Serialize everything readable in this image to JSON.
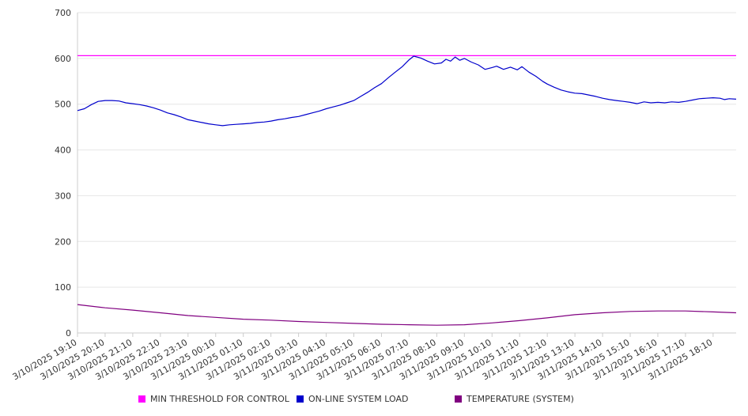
{
  "colors": {
    "threshold": "#ff00ff",
    "load": "#0000cc",
    "temperature": "#800080",
    "grid": "#e6e6e6",
    "axis": "#cccccc",
    "text": "#333333"
  },
  "legend": {
    "threshold_label": "MIN THRESHOLD FOR CONTROL",
    "load_label": "ON-LINE SYSTEM LOAD",
    "temperature_label": "TEMPERATURE (SYSTEM)"
  },
  "chart_data": {
    "type": "line",
    "title": "",
    "xlabel": "",
    "ylabel": "",
    "ylim": [
      0,
      700
    ],
    "yticks": [
      0,
      100,
      200,
      300,
      400,
      500,
      600,
      700
    ],
    "grid": true,
    "legend_position": "bottom",
    "x_ticks": [
      "3/10/2025 19:10",
      "3/10/2025 20:10",
      "3/10/2025 21:10",
      "3/10/2025 22:10",
      "3/10/2025 23:10",
      "3/11/2025 00:10",
      "3/11/2025 01:10",
      "3/11/2025 02:10",
      "3/11/2025 03:10",
      "3/11/2025 04:10",
      "3/11/2025 05:10",
      "3/11/2025 06:10",
      "3/11/2025 07:10",
      "3/11/2025 08:10",
      "3/11/2025 09:10",
      "3/11/2025 10:10",
      "3/11/2025 11:10",
      "3/11/2025 12:10",
      "3/11/2025 13:10",
      "3/11/2025 14:10",
      "3/11/2025 15:10",
      "3/11/2025 16:10",
      "3/11/2025 17:10",
      "3/11/2025 18:10"
    ],
    "x_end": "3/11/2025 19:00",
    "series": [
      {
        "name": "MIN THRESHOLD FOR CONTROL",
        "color": "#ff00ff",
        "points": [
          [
            "3/10/2025 19:10",
            606
          ],
          [
            "3/11/2025 19:00",
            606
          ]
        ]
      },
      {
        "name": "ON-LINE SYSTEM LOAD",
        "color": "#0000cc",
        "points": [
          [
            "3/10/2025 19:10",
            486
          ],
          [
            "3/10/2025 19:25",
            490
          ],
          [
            "3/10/2025 19:40",
            499
          ],
          [
            "3/10/2025 19:55",
            506
          ],
          [
            "3/10/2025 20:10",
            508
          ],
          [
            "3/10/2025 20:25",
            508
          ],
          [
            "3/10/2025 20:40",
            507
          ],
          [
            "3/10/2025 20:55",
            503
          ],
          [
            "3/10/2025 21:10",
            501
          ],
          [
            "3/10/2025 21:25",
            499
          ],
          [
            "3/10/2025 21:40",
            496
          ],
          [
            "3/10/2025 21:55",
            492
          ],
          [
            "3/10/2025 22:10",
            487
          ],
          [
            "3/10/2025 22:25",
            481
          ],
          [
            "3/10/2025 22:40",
            477
          ],
          [
            "3/10/2025 22:55",
            472
          ],
          [
            "3/10/2025 23:10",
            466
          ],
          [
            "3/10/2025 23:25",
            463
          ],
          [
            "3/10/2025 23:40",
            460
          ],
          [
            "3/10/2025 23:55",
            457
          ],
          [
            "3/11/2025 00:10",
            455
          ],
          [
            "3/11/2025 00:25",
            453
          ],
          [
            "3/11/2025 00:40",
            455
          ],
          [
            "3/11/2025 00:55",
            456
          ],
          [
            "3/11/2025 01:10",
            457
          ],
          [
            "3/11/2025 01:25",
            458
          ],
          [
            "3/11/2025 01:40",
            460
          ],
          [
            "3/11/2025 01:55",
            461
          ],
          [
            "3/11/2025 02:10",
            463
          ],
          [
            "3/11/2025 02:25",
            466
          ],
          [
            "3/11/2025 02:40",
            468
          ],
          [
            "3/11/2025 02:55",
            471
          ],
          [
            "3/11/2025 03:10",
            473
          ],
          [
            "3/11/2025 03:25",
            477
          ],
          [
            "3/11/2025 03:40",
            481
          ],
          [
            "3/11/2025 03:55",
            485
          ],
          [
            "3/11/2025 04:10",
            490
          ],
          [
            "3/11/2025 04:25",
            494
          ],
          [
            "3/11/2025 04:40",
            498
          ],
          [
            "3/11/2025 04:55",
            503
          ],
          [
            "3/11/2025 05:10",
            508
          ],
          [
            "3/11/2025 05:25",
            517
          ],
          [
            "3/11/2025 05:40",
            526
          ],
          [
            "3/11/2025 05:55",
            536
          ],
          [
            "3/11/2025 06:10",
            545
          ],
          [
            "3/11/2025 06:25",
            558
          ],
          [
            "3/11/2025 06:40",
            570
          ],
          [
            "3/11/2025 06:55",
            582
          ],
          [
            "3/11/2025 07:10",
            597
          ],
          [
            "3/11/2025 07:20",
            605
          ],
          [
            "3/11/2025 07:35",
            601
          ],
          [
            "3/11/2025 07:50",
            594
          ],
          [
            "3/11/2025 08:05",
            588
          ],
          [
            "3/11/2025 08:20",
            590
          ],
          [
            "3/11/2025 08:30",
            598
          ],
          [
            "3/11/2025 08:40",
            594
          ],
          [
            "3/11/2025 08:50",
            603
          ],
          [
            "3/11/2025 09:00",
            596
          ],
          [
            "3/11/2025 09:10",
            600
          ],
          [
            "3/11/2025 09:25",
            592
          ],
          [
            "3/11/2025 09:40",
            586
          ],
          [
            "3/11/2025 09:55",
            576
          ],
          [
            "3/11/2025 10:10",
            580
          ],
          [
            "3/11/2025 10:20",
            583
          ],
          [
            "3/11/2025 10:35",
            576
          ],
          [
            "3/11/2025 10:50",
            581
          ],
          [
            "3/11/2025 11:05",
            575
          ],
          [
            "3/11/2025 11:15",
            582
          ],
          [
            "3/11/2025 11:30",
            570
          ],
          [
            "3/11/2025 11:45",
            561
          ],
          [
            "3/11/2025 12:00",
            550
          ],
          [
            "3/11/2025 12:10",
            544
          ],
          [
            "3/11/2025 12:25",
            537
          ],
          [
            "3/11/2025 12:40",
            531
          ],
          [
            "3/11/2025 12:55",
            527
          ],
          [
            "3/11/2025 13:10",
            524
          ],
          [
            "3/11/2025 13:25",
            523
          ],
          [
            "3/11/2025 13:40",
            520
          ],
          [
            "3/11/2025 13:55",
            517
          ],
          [
            "3/11/2025 14:10",
            513
          ],
          [
            "3/11/2025 14:25",
            510
          ],
          [
            "3/11/2025 14:40",
            508
          ],
          [
            "3/11/2025 14:55",
            506
          ],
          [
            "3/11/2025 15:10",
            504
          ],
          [
            "3/11/2025 15:25",
            501
          ],
          [
            "3/11/2025 15:40",
            505
          ],
          [
            "3/11/2025 15:55",
            503
          ],
          [
            "3/11/2025 16:10",
            504
          ],
          [
            "3/11/2025 16:25",
            503
          ],
          [
            "3/11/2025 16:40",
            505
          ],
          [
            "3/11/2025 16:55",
            504
          ],
          [
            "3/11/2025 17:10",
            506
          ],
          [
            "3/11/2025 17:25",
            509
          ],
          [
            "3/11/2025 17:40",
            512
          ],
          [
            "3/11/2025 17:55",
            513
          ],
          [
            "3/11/2025 18:10",
            514
          ],
          [
            "3/11/2025 18:25",
            513
          ],
          [
            "3/11/2025 18:35",
            510
          ],
          [
            "3/11/2025 18:45",
            512
          ],
          [
            "3/11/2025 19:00",
            511
          ]
        ]
      },
      {
        "name": "TEMPERATURE (SYSTEM)",
        "color": "#800080",
        "points": [
          [
            "3/10/2025 19:10",
            62
          ],
          [
            "3/10/2025 20:10",
            55
          ],
          [
            "3/10/2025 21:10",
            50
          ],
          [
            "3/10/2025 22:10",
            44
          ],
          [
            "3/10/2025 23:10",
            38
          ],
          [
            "3/11/2025 00:10",
            34
          ],
          [
            "3/11/2025 01:10",
            30
          ],
          [
            "3/11/2025 02:10",
            28
          ],
          [
            "3/11/2025 03:10",
            25
          ],
          [
            "3/11/2025 04:10",
            23
          ],
          [
            "3/11/2025 05:10",
            21
          ],
          [
            "3/11/2025 06:10",
            19
          ],
          [
            "3/11/2025 07:10",
            18
          ],
          [
            "3/11/2025 08:10",
            17
          ],
          [
            "3/11/2025 09:10",
            18
          ],
          [
            "3/11/2025 10:10",
            22
          ],
          [
            "3/11/2025 11:10",
            27
          ],
          [
            "3/11/2025 12:10",
            33
          ],
          [
            "3/11/2025 13:10",
            40
          ],
          [
            "3/11/2025 14:10",
            44
          ],
          [
            "3/11/2025 15:10",
            47
          ],
          [
            "3/11/2025 16:10",
            48
          ],
          [
            "3/11/2025 17:10",
            48
          ],
          [
            "3/11/2025 18:10",
            46
          ],
          [
            "3/11/2025 19:00",
            44
          ]
        ]
      }
    ]
  }
}
